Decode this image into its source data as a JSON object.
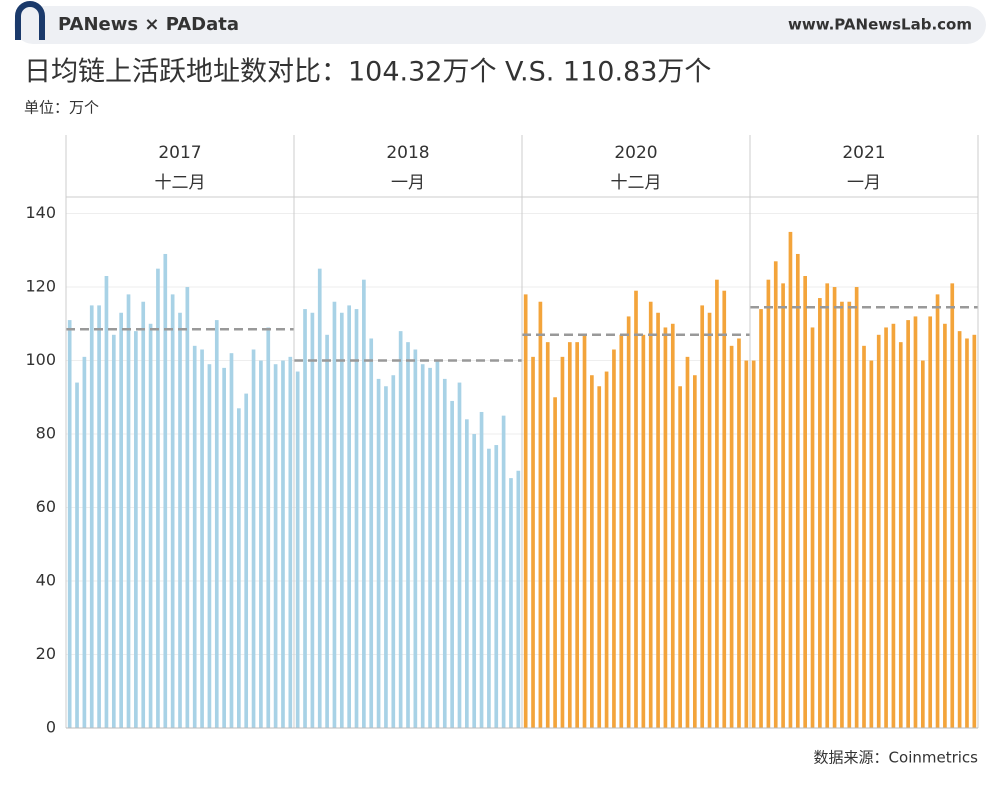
{
  "header": {
    "brand": "PANews × PAData",
    "website": "www.PANewsLab.com"
  },
  "chart_data": {
    "type": "bar",
    "title": "日均链上活跃地址数对比：104.32万个 V.S. 110.83万个",
    "unit_label": "单位：万个",
    "source": "数据来源：Coinmetrics",
    "ylim": [
      0,
      144.5
    ],
    "yticks": [
      0,
      20,
      40,
      60,
      80,
      100,
      120,
      140
    ],
    "panels": [
      {
        "year": "2017",
        "month": "十二月",
        "color": "#a8d2e6",
        "average": 108.5,
        "values": [
          111,
          94,
          101,
          115,
          115,
          123,
          107,
          113,
          118,
          108,
          116,
          110,
          125,
          129,
          118,
          113,
          120,
          104,
          103,
          99,
          111,
          98,
          102,
          87,
          91,
          103,
          100,
          109,
          99,
          100,
          101
        ]
      },
      {
        "year": "2018",
        "month": "一月",
        "color": "#a8d2e6",
        "average": 100,
        "values": [
          97,
          114,
          113,
          125,
          107,
          116,
          113,
          115,
          114,
          122,
          106,
          95,
          93,
          96,
          108,
          105,
          103,
          99,
          98,
          100,
          95,
          89,
          94,
          84,
          80,
          86,
          76,
          77,
          85,
          68,
          70
        ]
      },
      {
        "year": "2020",
        "month": "十二月",
        "color": "#f3a43b",
        "average": 107,
        "values": [
          118,
          101,
          116,
          105,
          90,
          101,
          105,
          105,
          107,
          96,
          93,
          97,
          103,
          107,
          112,
          119,
          107,
          116,
          113,
          109,
          110,
          93,
          101,
          96,
          115,
          113,
          122,
          119,
          104,
          106,
          100
        ]
      },
      {
        "year": "2021",
        "month": "一月",
        "color": "#f3a43b",
        "average": 114.5,
        "values": [
          100,
          114,
          122,
          127,
          121,
          135,
          129,
          123,
          109,
          117,
          121,
          120,
          116,
          116,
          120,
          104,
          100,
          107,
          109,
          110,
          105,
          111,
          112,
          100,
          112,
          118,
          110,
          121,
          108,
          106,
          107
        ]
      }
    ]
  }
}
